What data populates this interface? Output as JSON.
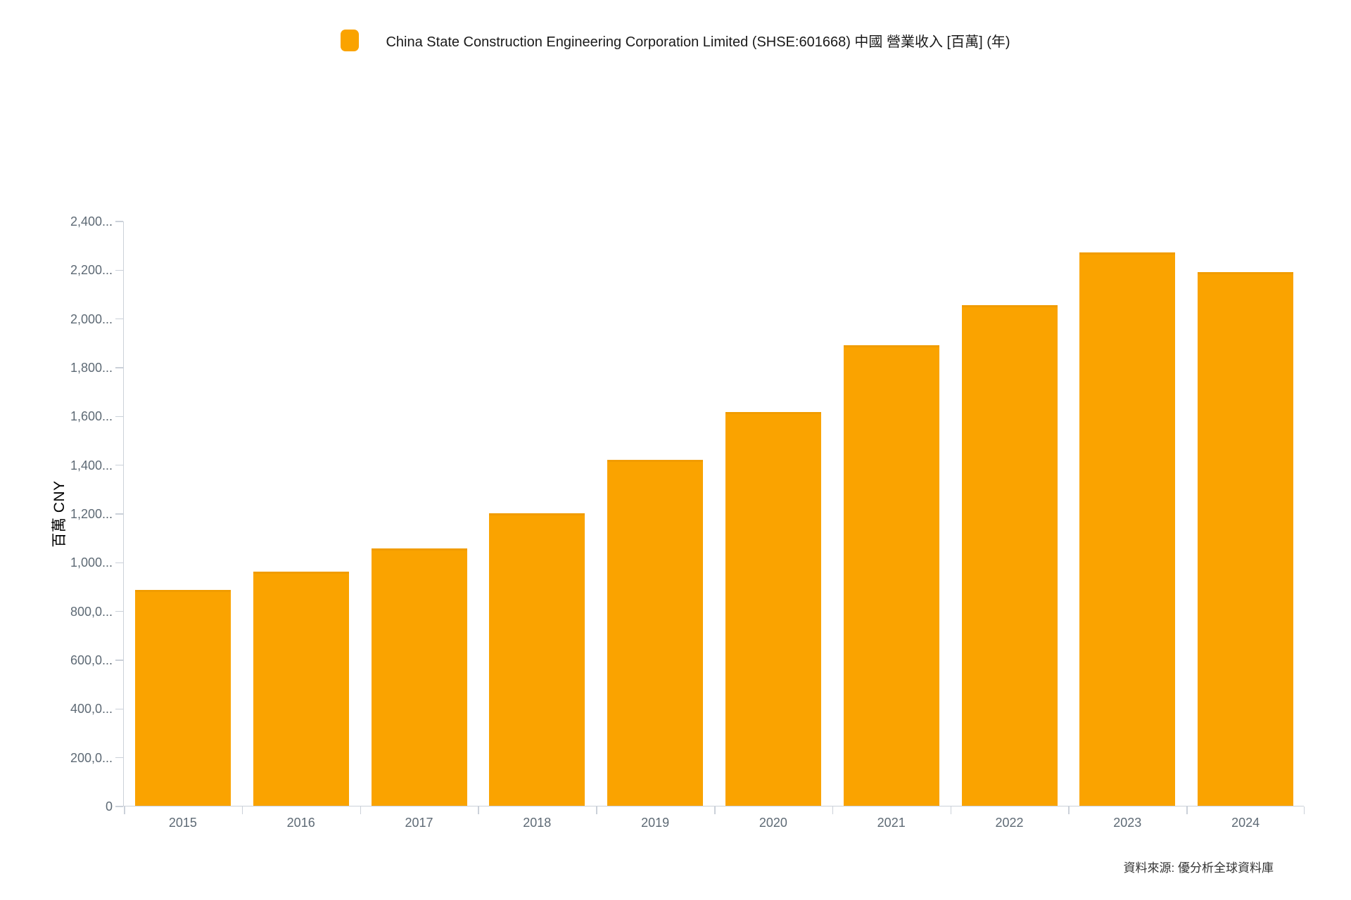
{
  "legend": {
    "label": "China State Construction Engineering Corporation Limited (SHSE:601668) 中國 營業收入 [百萬] (年)",
    "marker_color": "#FAA300"
  },
  "y_axis": {
    "title": "百萬 CNY",
    "tick_labels": [
      "2,400...",
      "2,200...",
      "2,000...",
      "1,800...",
      "1,600...",
      "1,400...",
      "1,200...",
      "1,000...",
      "800,0...",
      "600,0...",
      "400,0...",
      "200,0...",
      "0"
    ]
  },
  "x_axis": {
    "labels": [
      "2015",
      "2016",
      "2017",
      "2018",
      "2019",
      "2020",
      "2021",
      "2022",
      "2023",
      "2024"
    ]
  },
  "footer": {
    "source": "資料來源: 優分析全球資料庫"
  },
  "colors": {
    "bar": "#FAA300",
    "bar_edge": "#F19C00",
    "axis_line": "#CBD1D9",
    "tick_label": "#5E6A75",
    "title_text": "#1A1A1A",
    "source_text": "#333333"
  },
  "chart_data": {
    "type": "bar",
    "title": "China State Construction Engineering Corporation Limited (SHSE:601668) 中國 營業收入 [百萬] (年)",
    "series_name": "China State Construction Engineering Corporation Limited (SHSE:601668) 中國 營業收入 [百萬] (年)",
    "categories": [
      "2015",
      "2016",
      "2017",
      "2018",
      "2019",
      "2020",
      "2021",
      "2022",
      "2023",
      "2024"
    ],
    "values": [
      885000,
      960000,
      1055000,
      1200000,
      1420000,
      1615000,
      1890000,
      2055000,
      2270000,
      2190000
    ],
    "unit": "百萬 CNY",
    "xlabel": "",
    "ylabel": "百萬 CNY",
    "ylim": [
      0,
      2400000
    ],
    "y_tick_interval": 200000,
    "legend_position": "top",
    "grid": false,
    "bar_color": "#FAA300",
    "source": "資料來源: 優分析全球資料庫"
  }
}
